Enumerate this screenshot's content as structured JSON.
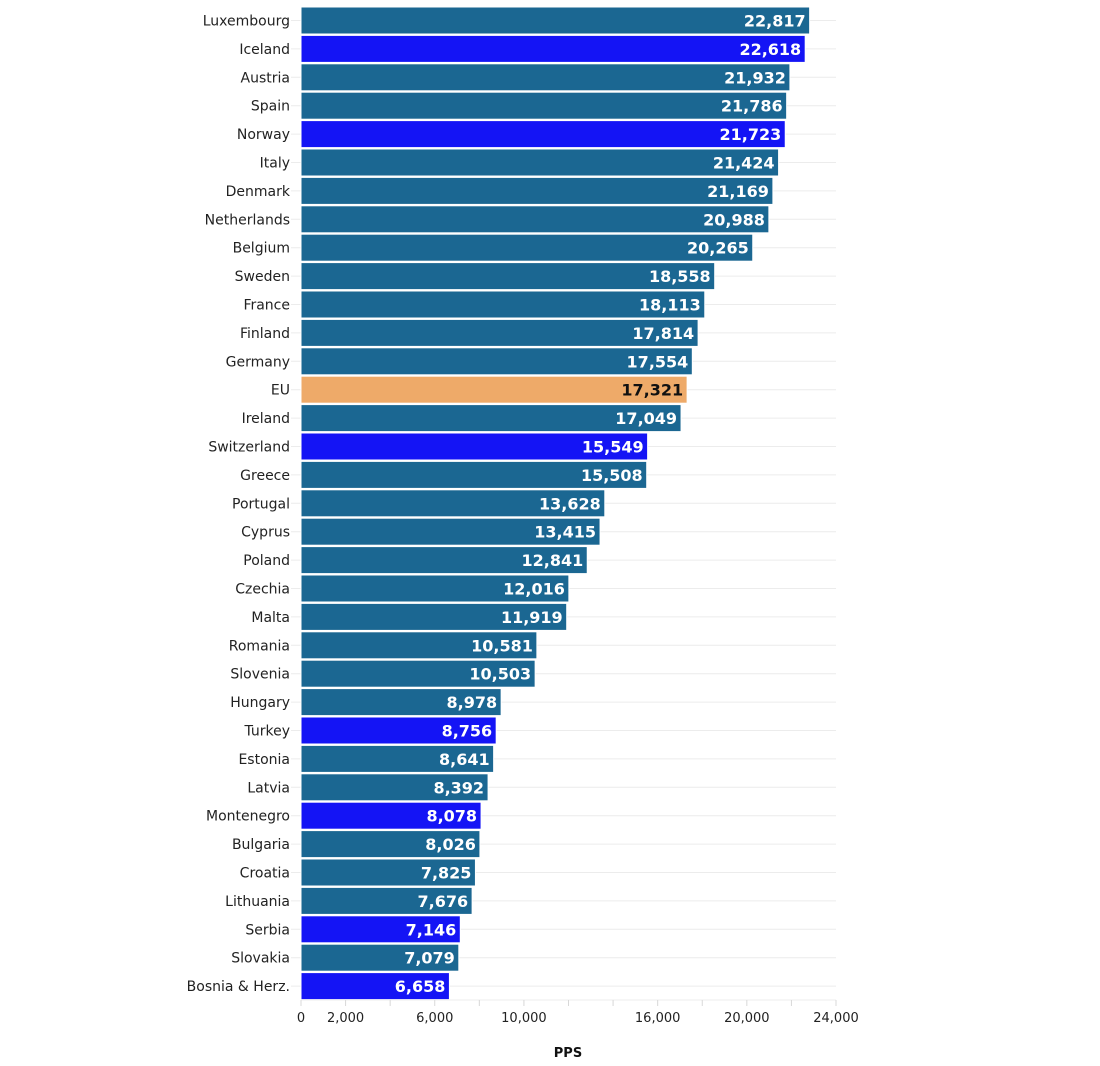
{
  "chart_data": {
    "type": "bar",
    "orientation": "horizontal",
    "title": "",
    "xlabel": "PPS",
    "ylabel": "",
    "xlim": [
      0,
      24000
    ],
    "x_tick_values": [
      0,
      2000,
      4000,
      6000,
      8000,
      10000,
      12000,
      14000,
      16000,
      18000,
      20000,
      22000,
      24000
    ],
    "x_tick_labels": [
      {
        "value": 0,
        "label": "0"
      },
      {
        "value": 2000,
        "label": "2,000"
      },
      {
        "value": 6000,
        "label": "6,000"
      },
      {
        "value": 10000,
        "label": "10,000"
      },
      {
        "value": 16000,
        "label": "16,000"
      },
      {
        "value": 20000,
        "label": "20,000"
      },
      {
        "value": 24000,
        "label": "24,000"
      }
    ],
    "grid": true,
    "colors": {
      "eu_member": "#1b6792",
      "non_eu": "#1414f5",
      "eu_average": "#eeaa69"
    },
    "categories": [
      "Luxembourg",
      "Iceland",
      "Austria",
      "Spain",
      "Norway",
      "Italy",
      "Denmark",
      "Netherlands",
      "Belgium",
      "Sweden",
      "France",
      "Finland",
      "Germany",
      "EU",
      "Ireland",
      "Switzerland",
      "Greece",
      "Portugal",
      "Cyprus",
      "Poland",
      "Czechia",
      "Malta",
      "Romania",
      "Slovenia",
      "Hungary",
      "Turkey",
      "Estonia",
      "Latvia",
      "Montenegro",
      "Bulgaria",
      "Croatia",
      "Lithuania",
      "Serbia",
      "Slovakia",
      "Bosnia & Herz."
    ],
    "values": [
      22817,
      22618,
      21932,
      21786,
      21723,
      21424,
      21169,
      20988,
      20265,
      18558,
      18113,
      17814,
      17554,
      17321,
      17049,
      15549,
      15508,
      13628,
      13415,
      12841,
      12016,
      11919,
      10581,
      10503,
      8978,
      8756,
      8641,
      8392,
      8078,
      8026,
      7825,
      7676,
      7146,
      7079,
      6658
    ],
    "value_labels": [
      "22,817",
      "22,618",
      "21,932",
      "21,786",
      "21,723",
      "21,424",
      "21,169",
      "20,988",
      "20,265",
      "18,558",
      "18,113",
      "17,814",
      "17,554",
      "17,321",
      "17,049",
      "15,549",
      "15,508",
      "13,628",
      "13,415",
      "12,841",
      "12,016",
      "11,919",
      "10,581",
      "10,503",
      "8,978",
      "8,756",
      "8,641",
      "8,392",
      "8,078",
      "8,026",
      "7,825",
      "7,676",
      "7,146",
      "7,079",
      "6,658"
    ],
    "groups": [
      "eu_member",
      "non_eu",
      "eu_member",
      "eu_member",
      "non_eu",
      "eu_member",
      "eu_member",
      "eu_member",
      "eu_member",
      "eu_member",
      "eu_member",
      "eu_member",
      "eu_member",
      "eu_average",
      "eu_member",
      "non_eu",
      "eu_member",
      "eu_member",
      "eu_member",
      "eu_member",
      "eu_member",
      "eu_member",
      "eu_member",
      "eu_member",
      "eu_member",
      "non_eu",
      "eu_member",
      "eu_member",
      "non_eu",
      "eu_member",
      "eu_member",
      "eu_member",
      "non_eu",
      "eu_member",
      "non_eu"
    ]
  }
}
